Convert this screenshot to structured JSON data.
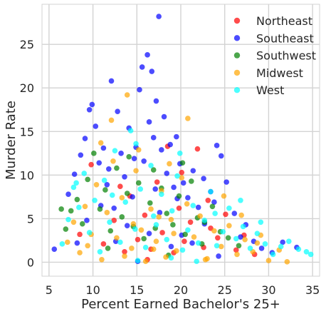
{
  "chart_data": {
    "type": "scatter",
    "title": "",
    "xlabel": "Percent Earned Bachelor's 25+",
    "ylabel": "Murder Rate",
    "xlim": [
      4.2,
      35.8
    ],
    "ylim": [
      -1.6,
      29.6
    ],
    "xticks": [
      5,
      10,
      15,
      20,
      25,
      30,
      35
    ],
    "yticks": [
      0,
      5,
      10,
      15,
      20,
      25
    ],
    "grid": true,
    "legend": {
      "placement": "top-right"
    },
    "marker_alpha": 0.7,
    "series": [
      {
        "name": "Northeast",
        "color": "#ff0000",
        "points": [
          [
            8.5,
            3.2
          ],
          [
            9.8,
            11.2
          ],
          [
            11.2,
            2.1
          ],
          [
            12.4,
            4.8
          ],
          [
            13.6,
            1.2
          ],
          [
            14.2,
            7.6
          ],
          [
            15.1,
            2.6
          ],
          [
            15.9,
            5.4
          ],
          [
            16.6,
            1.5
          ],
          [
            17.3,
            9.2
          ],
          [
            17.9,
            3.4
          ],
          [
            18.5,
            13.3
          ],
          [
            19.2,
            1.1
          ],
          [
            19.8,
            6.2
          ],
          [
            20.4,
            2.4
          ],
          [
            21.1,
            4.6
          ],
          [
            21.9,
            13
          ],
          [
            22.6,
            1.7
          ],
          [
            23.4,
            3.9
          ],
          [
            24.2,
            2.8
          ],
          [
            25.1,
            5.5
          ],
          [
            26.3,
            1.4
          ],
          [
            27.2,
            3.1
          ],
          [
            28.4,
            0.9
          ],
          [
            20.1,
            10.3
          ],
          [
            16.2,
            0.3
          ],
          [
            13.1,
            8.7
          ],
          [
            23.1,
            7.1
          ]
        ]
      },
      {
        "name": "Southeast",
        "color": "#0000ff",
        "points": [
          [
            5.6,
            1.5
          ],
          [
            7.2,
            7.8
          ],
          [
            7.9,
            10.1
          ],
          [
            8.6,
            12.3
          ],
          [
            9.1,
            14.2
          ],
          [
            9.6,
            17.5
          ],
          [
            9.9,
            18.1
          ],
          [
            10.3,
            15.6
          ],
          [
            10.7,
            11.4
          ],
          [
            11.2,
            13.1
          ],
          [
            11.6,
            8.9
          ],
          [
            12.1,
            20.8
          ],
          [
            12.4,
            6.2
          ],
          [
            12.8,
            17.3
          ],
          [
            13.2,
            12.5
          ],
          [
            13.6,
            9.8
          ],
          [
            14.1,
            15.4
          ],
          [
            14.5,
            7.5
          ],
          [
            14.9,
            13.2
          ],
          [
            15.3,
            19.8
          ],
          [
            15.6,
            22.4
          ],
          [
            15.8,
            11.6
          ],
          [
            16.2,
            23.8
          ],
          [
            16.4,
            16.1
          ],
          [
            16.7,
            21.9
          ],
          [
            16.9,
            14.3
          ],
          [
            17.2,
            18.5
          ],
          [
            17.5,
            28.2
          ],
          [
            17.8,
            12.9
          ],
          [
            18.1,
            16.7
          ],
          [
            18.4,
            10.2
          ],
          [
            18.8,
            13.5
          ],
          [
            19.2,
            8.6
          ],
          [
            19.5,
            14.4
          ],
          [
            19.9,
            11.3
          ],
          [
            20.3,
            9.1
          ],
          [
            20.8,
            7.4
          ],
          [
            21.4,
            10.5
          ],
          [
            22,
            6.3
          ],
          [
            22.6,
            9.6
          ],
          [
            23.4,
            8.1
          ],
          [
            24.1,
            13.4
          ],
          [
            24.6,
            12.2
          ],
          [
            25.2,
            9.2
          ],
          [
            26.1,
            5.6
          ],
          [
            27.4,
            4.3
          ],
          [
            28.3,
            2.4
          ],
          [
            29.2,
            1.6
          ],
          [
            30.4,
            1.1
          ],
          [
            31.6,
            2.3
          ],
          [
            33.2,
            1.7
          ],
          [
            10.9,
            6.5
          ],
          [
            12.6,
            2.4
          ],
          [
            13.9,
            4.2
          ],
          [
            15.1,
            0.1
          ],
          [
            16.4,
            3.3
          ],
          [
            17.6,
            5.7
          ],
          [
            18.9,
            1.8
          ],
          [
            20.1,
            3.1
          ],
          [
            21.3,
            2.2
          ],
          [
            22.7,
            4.4
          ],
          [
            24.3,
            0.7
          ],
          [
            11.8,
            10.7
          ],
          [
            14.7,
            11.9
          ],
          [
            19.6,
            7.3
          ],
          [
            23.8,
            6.9
          ],
          [
            9.3,
            4.8
          ],
          [
            8.2,
            2.2
          ],
          [
            26.8,
            2.9
          ],
          [
            17.1,
            8.4
          ]
        ]
      },
      {
        "name": "Southwest",
        "color": "#008000",
        "points": [
          [
            6.9,
            3.8
          ],
          [
            7.5,
            5.9
          ],
          [
            8.2,
            7.2
          ],
          [
            8.8,
            4.4
          ],
          [
            9.4,
            9.5
          ],
          [
            10.1,
            12.5
          ],
          [
            10.8,
            6.1
          ],
          [
            11.4,
            8.3
          ],
          [
            12,
            3.6
          ],
          [
            12.7,
            10.8
          ],
          [
            13.3,
            5.2
          ],
          [
            13.9,
            7.9
          ],
          [
            14.6,
            4.1
          ],
          [
            15.2,
            9.1
          ],
          [
            15.8,
            2.7
          ],
          [
            16.5,
            6.8
          ],
          [
            17.1,
            3.9
          ],
          [
            17.8,
            8.5
          ],
          [
            18.4,
            5.6
          ],
          [
            19.1,
            4.3
          ],
          [
            19.8,
            7.6
          ],
          [
            20.5,
            3.2
          ],
          [
            21.2,
            9.3
          ],
          [
            21.9,
            5.1
          ],
          [
            22.7,
            4.6
          ],
          [
            23.6,
            6.4
          ],
          [
            24.5,
            3.5
          ],
          [
            25.4,
            2.8
          ],
          [
            26.6,
            1.9
          ],
          [
            14.1,
            12.1
          ],
          [
            16.9,
            10.6
          ],
          [
            20.2,
            11.4
          ],
          [
            11.7,
            1.6
          ],
          [
            18.6,
            0.8
          ],
          [
            22.4,
            2.1
          ],
          [
            6.4,
            6.1
          ]
        ]
      },
      {
        "name": "Midwest",
        "color": "#ffa500",
        "points": [
          [
            7.1,
            2.3
          ],
          [
            7.8,
            4.6
          ],
          [
            8.5,
            1.1
          ],
          [
            9.1,
            6.4
          ],
          [
            9.8,
            3.2
          ],
          [
            10.4,
            8.9
          ],
          [
            11,
            0.3
          ],
          [
            11.6,
            5.7
          ],
          [
            12.1,
            16.3
          ],
          [
            12.7,
            2.8
          ],
          [
            13.3,
            7.4
          ],
          [
            13.9,
            19.2
          ],
          [
            14.4,
            1.6
          ],
          [
            14.9,
            10.5
          ],
          [
            15.5,
            3.7
          ],
          [
            16,
            0.1
          ],
          [
            16.6,
            6.1
          ],
          [
            17.2,
            2.4
          ],
          [
            17.8,
            8.2
          ],
          [
            18.3,
            0.6
          ],
          [
            18.9,
            4.9
          ],
          [
            19.5,
            1.3
          ],
          [
            20.1,
            9.7
          ],
          [
            20.8,
            16.5
          ],
          [
            21.5,
            2.9
          ],
          [
            22.2,
            5.3
          ],
          [
            23,
            0.4
          ],
          [
            23.8,
            3.6
          ],
          [
            24.6,
            1.8
          ],
          [
            25.5,
            4.2
          ],
          [
            26.4,
            0.9
          ],
          [
            27.3,
            2.6
          ],
          [
            28.2,
            1.2
          ],
          [
            29.1,
            3.1
          ],
          [
            30,
            0.2
          ],
          [
            31.2,
            1.4
          ],
          [
            32.1,
            0.05
          ],
          [
            12.3,
            11.6
          ],
          [
            15.2,
            12.9
          ],
          [
            18.7,
            11.3
          ],
          [
            10.9,
            13.7
          ],
          [
            14.6,
            4.4
          ],
          [
            17.5,
            5.2
          ],
          [
            20.7,
            6.7
          ],
          [
            24.9,
            7.6
          ],
          [
            26.9,
            5.4
          ],
          [
            28.7,
            2.2
          ],
          [
            13.6,
            0.7
          ],
          [
            16.9,
            1.5
          ],
          [
            22.8,
            0.3
          ],
          [
            9.4,
            1.9
          ],
          [
            19.2,
            3.3
          ]
        ]
      },
      {
        "name": "West",
        "color": "#00ffff",
        "points": [
          [
            6.5,
            2.1
          ],
          [
            7.2,
            4.9
          ],
          [
            7.8,
            8.6
          ],
          [
            8.4,
            6.3
          ],
          [
            9,
            10.2
          ],
          [
            9.6,
            3.4
          ],
          [
            10.2,
            7.1
          ],
          [
            10.8,
            1.2
          ],
          [
            11.3,
            9.4
          ],
          [
            11.9,
            4.6
          ],
          [
            12.5,
            12.8
          ],
          [
            13.1,
            2.3
          ],
          [
            13.7,
            6.9
          ],
          [
            14.3,
            15.1
          ],
          [
            14.8,
            3.8
          ],
          [
            15.4,
            8.4
          ],
          [
            16,
            1.7
          ],
          [
            16.6,
            11.1
          ],
          [
            17.2,
            4.3
          ],
          [
            17.8,
            7.8
          ],
          [
            18.4,
            2.6
          ],
          [
            19,
            5.9
          ],
          [
            19.6,
            9.9
          ],
          [
            20.2,
            1.4
          ],
          [
            20.8,
            3.7
          ],
          [
            21.4,
            6.5
          ],
          [
            22,
            2.2
          ],
          [
            22.7,
            4.8
          ],
          [
            23.4,
            8.1
          ],
          [
            24.1,
            1.9
          ],
          [
            24.8,
            3.5
          ],
          [
            25.5,
            6.2
          ],
          [
            26.3,
            2.7
          ],
          [
            27.1,
            4.1
          ],
          [
            27.9,
            1.6
          ],
          [
            28.7,
            3.3
          ],
          [
            29.6,
            2.1
          ],
          [
            30.5,
            0.9
          ],
          [
            31.4,
            1.8
          ],
          [
            32.3,
            2.4
          ],
          [
            33.4,
            1.5
          ],
          [
            34.3,
            1.2
          ],
          [
            34.8,
            0.9
          ],
          [
            15.1,
            0.2
          ],
          [
            18.9,
            0.5
          ],
          [
            21.8,
            0.1
          ],
          [
            12.2,
            7.7
          ],
          [
            16.9,
            5.3
          ],
          [
            23.9,
            5.6
          ],
          [
            26.8,
            7.1
          ],
          [
            14.9,
            13.6
          ],
          [
            19.9,
            12.5
          ],
          [
            8.1,
            9.1
          ],
          [
            29.1,
            4.6
          ]
        ]
      }
    ]
  }
}
